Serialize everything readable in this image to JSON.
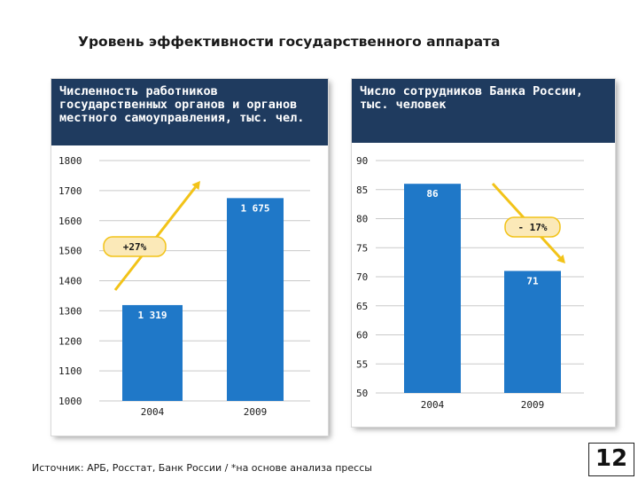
{
  "slide": {
    "title": "Уровень эффективности государственного аппарата",
    "source": "Источник: АРБ, Росстат, Банк России / *на основе анализа прессы",
    "page_number": "12"
  },
  "colors": {
    "header_bg": "#1f3b5f",
    "bar": "#1f78c8",
    "arrow": "#f2c318",
    "annotation_fill": "#fbe9b8"
  },
  "chart_data": [
    {
      "type": "bar",
      "title": "Численность работников государственных органов и органов местного самоуправления, тыс. чел.",
      "categories": [
        "2004",
        "2009"
      ],
      "values": [
        1319,
        1675
      ],
      "value_labels": [
        "1 319",
        "1 675"
      ],
      "ylim": [
        1000,
        1800
      ],
      "yticks": [
        1000,
        1100,
        1200,
        1300,
        1400,
        1500,
        1600,
        1700,
        1800
      ],
      "grid": true,
      "annotation": {
        "text": "+27%",
        "direction": "up"
      }
    },
    {
      "type": "bar",
      "title": "Число сотрудников Банка России, тыс. человек",
      "categories": [
        "2004",
        "2009"
      ],
      "values": [
        86,
        71
      ],
      "value_labels": [
        "86",
        "71"
      ],
      "ylim": [
        50,
        90
      ],
      "yticks": [
        50,
        55,
        60,
        65,
        70,
        75,
        80,
        85,
        90
      ],
      "grid": true,
      "annotation": {
        "text": "- 17%",
        "direction": "down"
      }
    }
  ]
}
